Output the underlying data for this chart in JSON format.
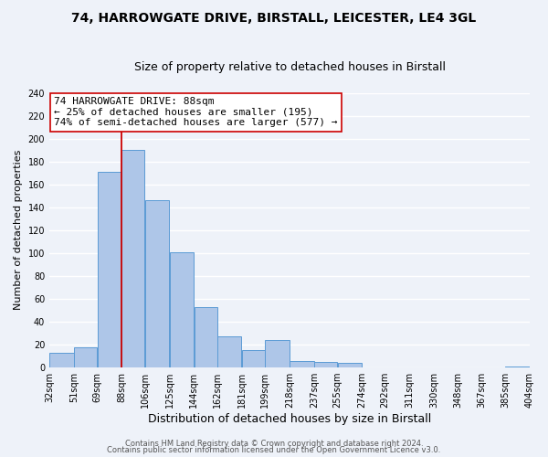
{
  "title1": "74, HARROWGATE DRIVE, BIRSTALL, LEICESTER, LE4 3GL",
  "title2": "Size of property relative to detached houses in Birstall",
  "xlabel": "Distribution of detached houses by size in Birstall",
  "ylabel": "Number of detached properties",
  "bar_left_edges": [
    32,
    51,
    69,
    88,
    106,
    125,
    144,
    162,
    181,
    199,
    218,
    237,
    255,
    274,
    292,
    311,
    330,
    348,
    367,
    385
  ],
  "bar_widths": [
    19,
    18,
    19,
    18,
    19,
    19,
    18,
    19,
    18,
    19,
    19,
    18,
    19,
    18,
    19,
    19,
    18,
    19,
    18,
    19
  ],
  "bar_heights": [
    13,
    18,
    171,
    190,
    146,
    101,
    53,
    27,
    15,
    24,
    6,
    5,
    4,
    0,
    0,
    0,
    0,
    0,
    0,
    1
  ],
  "tick_labels": [
    "32sqm",
    "51sqm",
    "69sqm",
    "88sqm",
    "106sqm",
    "125sqm",
    "144sqm",
    "162sqm",
    "181sqm",
    "199sqm",
    "218sqm",
    "237sqm",
    "255sqm",
    "274sqm",
    "292sqm",
    "311sqm",
    "330sqm",
    "348sqm",
    "367sqm",
    "385sqm",
    "404sqm"
  ],
  "bar_color": "#aec6e8",
  "bar_edge_color": "#5b9bd5",
  "vline_x": 88,
  "vline_color": "#cc0000",
  "annotation_line1": "74 HARROWGATE DRIVE: 88sqm",
  "annotation_line2": "← 25% of detached houses are smaller (195)",
  "annotation_line3": "74% of semi-detached houses are larger (577) →",
  "annotation_box_edge": "#cc0000",
  "ylim": [
    0,
    240
  ],
  "yticks": [
    0,
    20,
    40,
    60,
    80,
    100,
    120,
    140,
    160,
    180,
    200,
    220,
    240
  ],
  "footer1": "Contains HM Land Registry data © Crown copyright and database right 2024.",
  "footer2": "Contains public sector information licensed under the Open Government Licence v3.0.",
  "bg_color": "#eef2f9",
  "grid_color": "#ffffff",
  "title1_fontsize": 10,
  "title2_fontsize": 9,
  "annot_fontsize": 8,
  "tick_fontsize": 7,
  "ylabel_fontsize": 8,
  "xlabel_fontsize": 9,
  "footer_fontsize": 6
}
